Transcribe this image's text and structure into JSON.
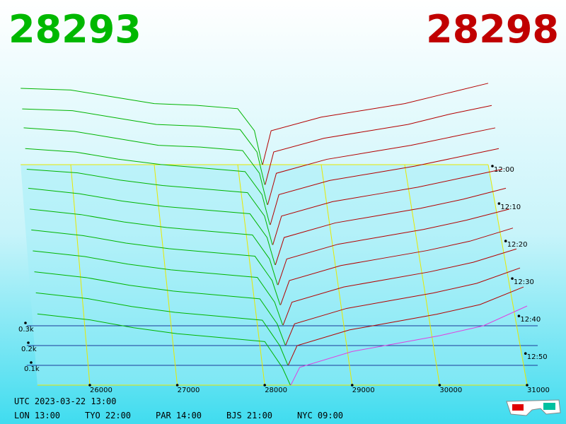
{
  "chart_data": {
    "type": "depth3d",
    "bid_price": "28293",
    "ask_price": "28298",
    "bid_color": "#00b400",
    "ask_color": "#b40000",
    "front_ask_color": "#e040e0",
    "grid_color": "#e8e800",
    "xlim": [
      25400,
      31000
    ],
    "xticks": [
      26000,
      27000,
      28000,
      29000,
      30000,
      31000
    ],
    "ylim": [
      0,
      0.5
    ],
    "yticks": [
      {
        "value": 0.1,
        "label": "0.1k"
      },
      {
        "value": 0.2,
        "label": "0.2k"
      },
      {
        "value": 0.3,
        "label": "0.3k"
      }
    ],
    "time_ticks": [
      "12:00",
      "12:10",
      "12:20",
      "12:30",
      "12:40",
      "12:50"
    ],
    "bid_x": [
      25400,
      26000,
      26500,
      27000,
      27500,
      28000,
      28200,
      28293
    ],
    "ask_x": [
      28298,
      28400,
      29000,
      29500,
      30000,
      30500,
      31000
    ],
    "snapshots": [
      {
        "bids": [
          0.45,
          0.44,
          0.4,
          0.36,
          0.35,
          0.33,
          0.2,
          0
        ],
        "asks": [
          0,
          0.2,
          0.28,
          0.32,
          0.36,
          0.42,
          0.48
        ]
      },
      {
        "bids": [
          0.44,
          0.43,
          0.39,
          0.35,
          0.34,
          0.32,
          0.19,
          0
        ],
        "asks": [
          0,
          0.19,
          0.27,
          0.31,
          0.35,
          0.41,
          0.46
        ]
      },
      {
        "bids": [
          0.44,
          0.42,
          0.38,
          0.34,
          0.33,
          0.31,
          0.18,
          0
        ],
        "asks": [
          0,
          0.18,
          0.26,
          0.3,
          0.34,
          0.39,
          0.44
        ]
      },
      {
        "bids": [
          0.43,
          0.41,
          0.37,
          0.34,
          0.32,
          0.3,
          0.17,
          0
        ],
        "asks": [
          0,
          0.17,
          0.25,
          0.29,
          0.33,
          0.38,
          0.43
        ]
      },
      {
        "bids": [
          0.42,
          0.4,
          0.36,
          0.33,
          0.31,
          0.29,
          0.16,
          0
        ],
        "asks": [
          0,
          0.16,
          0.24,
          0.28,
          0.32,
          0.37,
          0.42
        ]
      },
      {
        "bids": [
          0.42,
          0.39,
          0.35,
          0.32,
          0.3,
          0.28,
          0.15,
          0
        ],
        "asks": [
          0,
          0.15,
          0.23,
          0.27,
          0.31,
          0.36,
          0.42
        ]
      },
      {
        "bids": [
          0.41,
          0.38,
          0.34,
          0.31,
          0.29,
          0.27,
          0.14,
          0
        ],
        "asks": [
          0,
          0.14,
          0.22,
          0.26,
          0.3,
          0.35,
          0.41
        ]
      },
      {
        "bids": [
          0.4,
          0.37,
          0.33,
          0.3,
          0.28,
          0.26,
          0.13,
          0
        ],
        "asks": [
          0,
          0.13,
          0.21,
          0.25,
          0.29,
          0.34,
          0.41
        ]
      },
      {
        "bids": [
          0.39,
          0.36,
          0.32,
          0.29,
          0.27,
          0.25,
          0.12,
          0
        ],
        "asks": [
          0,
          0.12,
          0.2,
          0.24,
          0.28,
          0.33,
          0.4
        ]
      },
      {
        "bids": [
          0.38,
          0.35,
          0.31,
          0.28,
          0.26,
          0.24,
          0.11,
          0
        ],
        "asks": [
          0,
          0.11,
          0.19,
          0.23,
          0.27,
          0.32,
          0.4
        ]
      },
      {
        "bids": [
          0.37,
          0.34,
          0.3,
          0.27,
          0.25,
          0.23,
          0.1,
          0
        ],
        "asks": [
          0,
          0.1,
          0.18,
          0.22,
          0.26,
          0.31,
          0.4
        ]
      },
      {
        "bids": [
          0.36,
          0.33,
          0.29,
          0.26,
          0.24,
          0.22,
          0.09,
          0
        ],
        "asks": [
          0,
          0.09,
          0.17,
          0.21,
          0.25,
          0.3,
          0.4
        ]
      }
    ],
    "footer_utc": "UTC 2023-03-22 13:00",
    "footer_cities": [
      "LON 13:00",
      "TYO 22:00",
      "PAR 14:00",
      "BJS 21:00",
      "NYC 09:00"
    ]
  }
}
